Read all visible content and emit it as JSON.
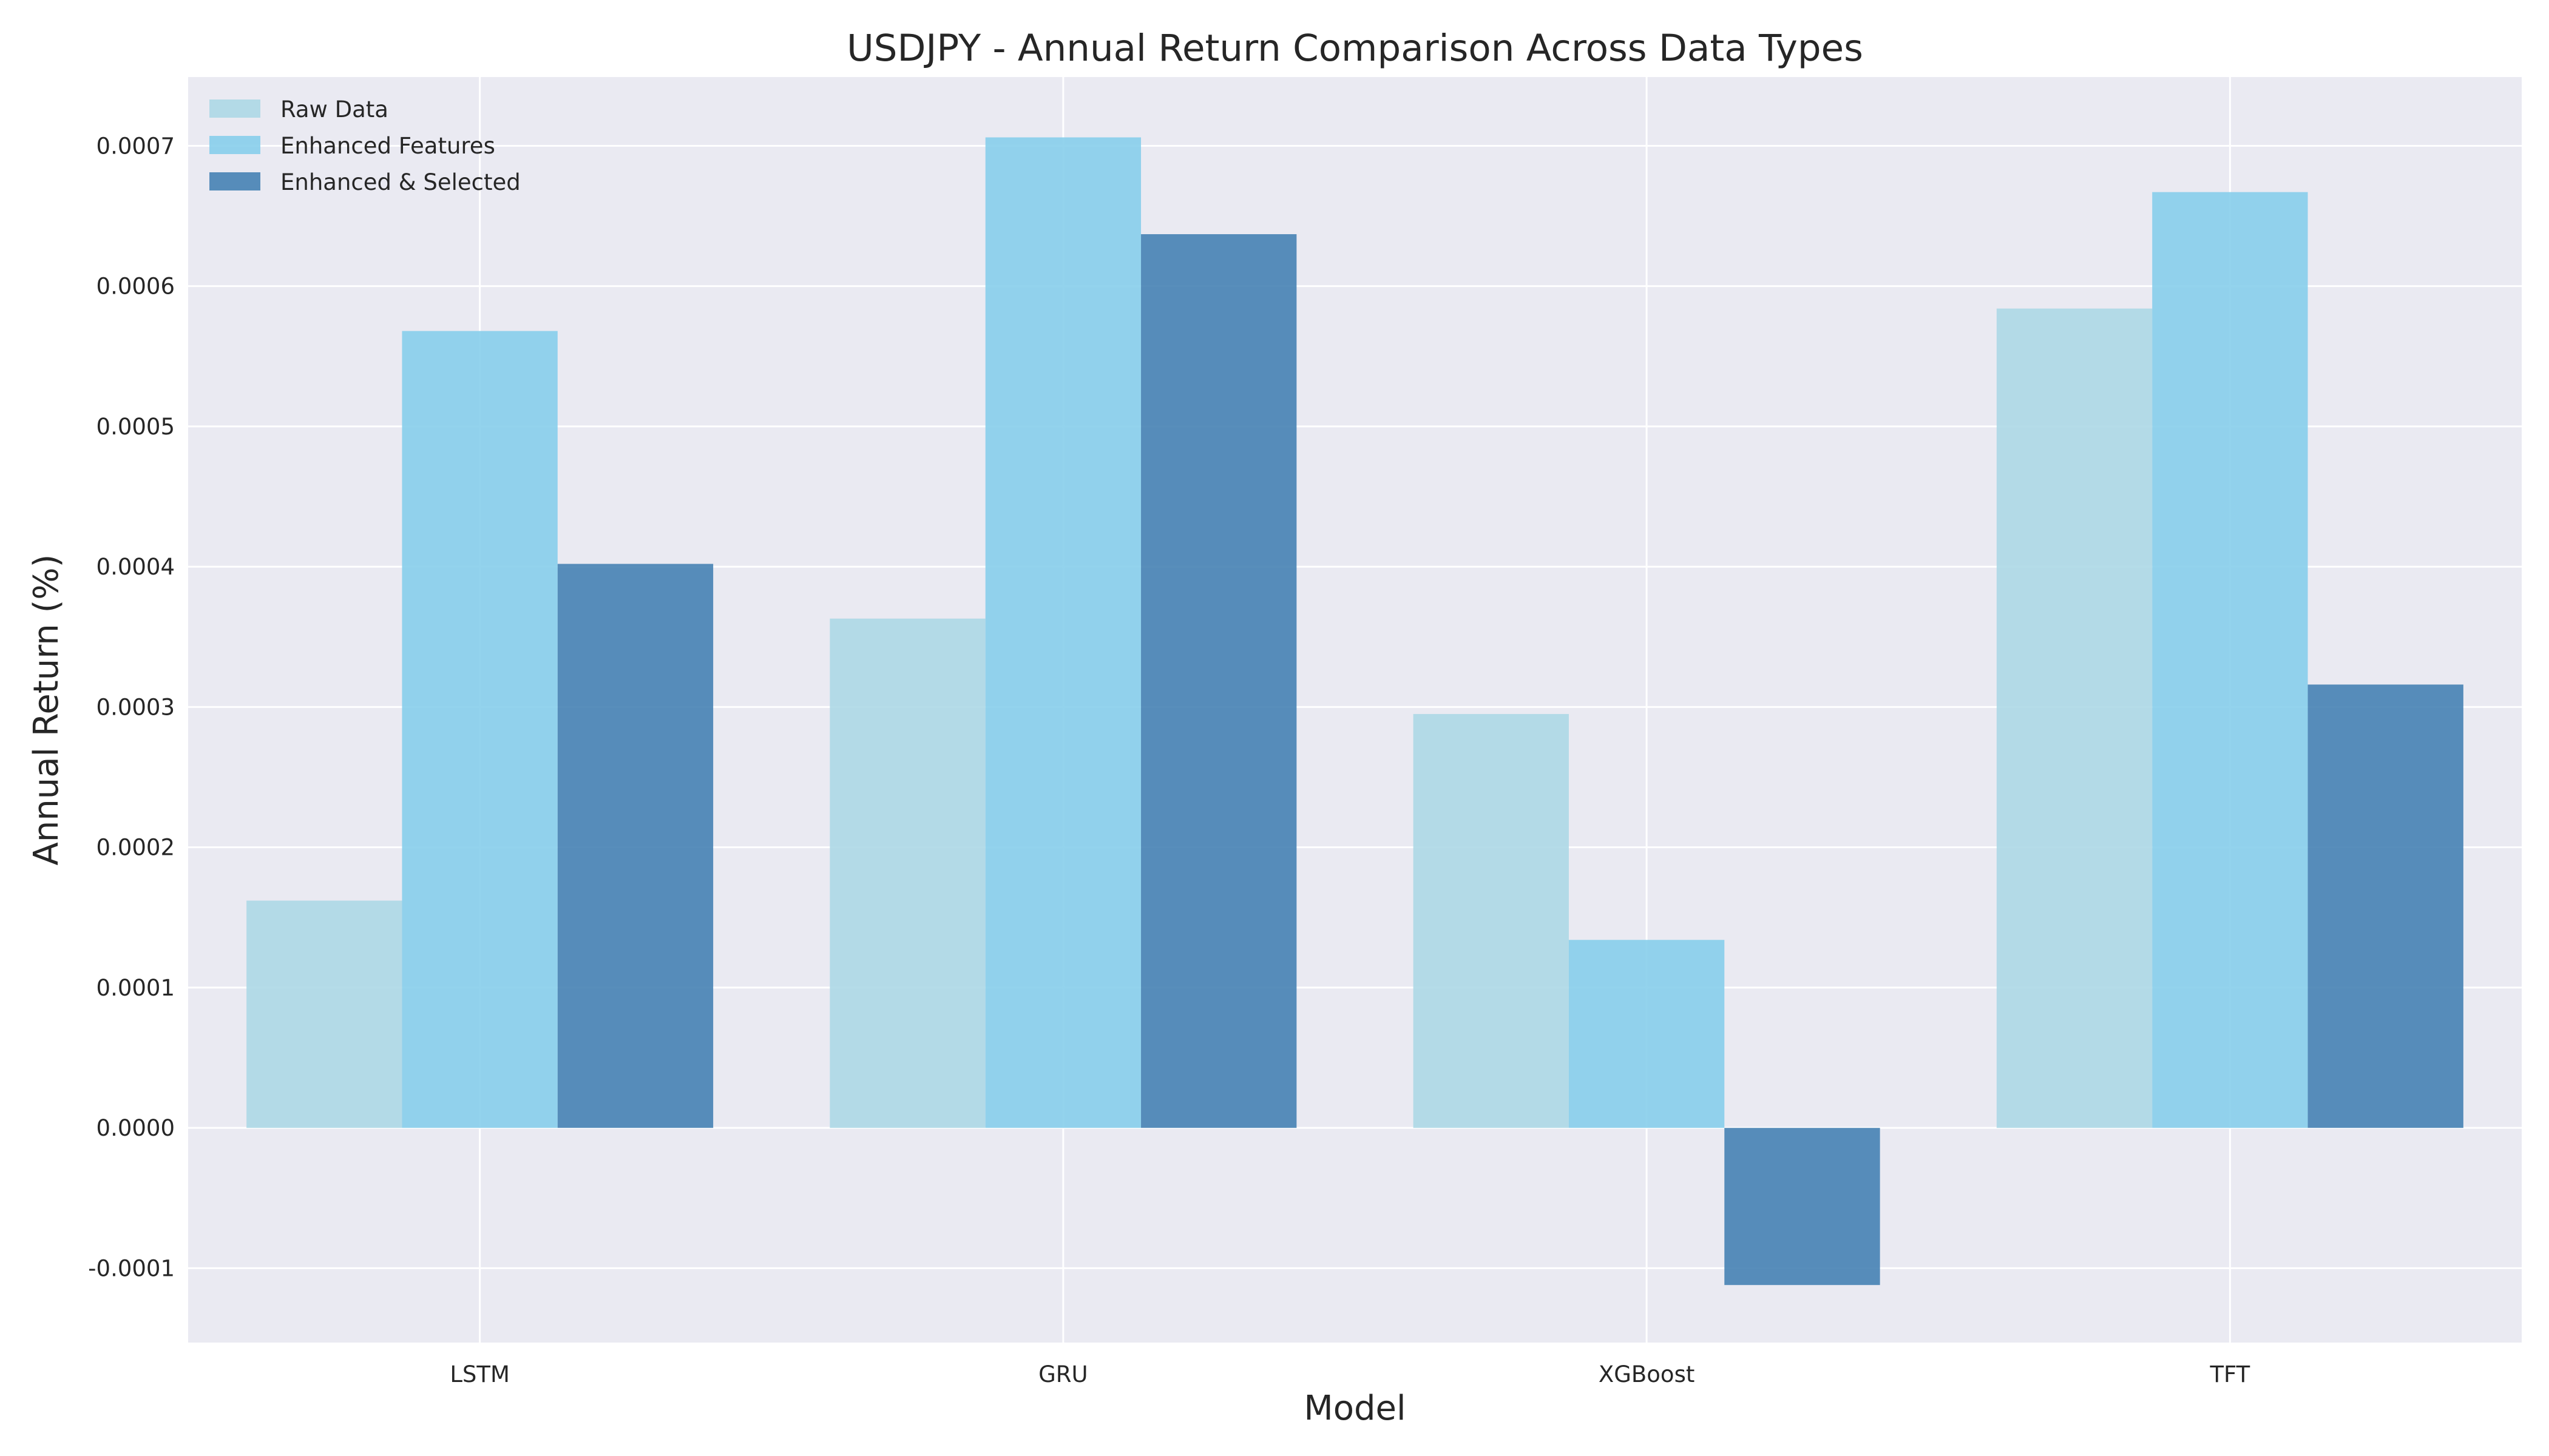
{
  "chart_data": {
    "type": "bar",
    "title": "USDJPY - Annual Return Comparison Across Data Types",
    "xlabel": "Model",
    "ylabel": "Annual Return (%)",
    "categories": [
      "LSTM",
      "GRU",
      "XGBoost",
      "TFT"
    ],
    "series": [
      {
        "name": "Raw Data",
        "color": "#add8e6",
        "values": [
          0.000162,
          0.000363,
          0.000295,
          0.000584
        ]
      },
      {
        "name": "Enhanced Features",
        "color": "#87ceeb",
        "values": [
          0.000568,
          0.000706,
          0.000134,
          0.000667
        ]
      },
      {
        "name": "Enhanced & Selected",
        "color": "#4682b4",
        "values": [
          0.000402,
          0.000637,
          -0.000112,
          0.000316
        ]
      }
    ],
    "ylim": [
      -0.000153,
      0.000749
    ],
    "yticks": [
      -0.0001,
      0.0,
      0.0001,
      0.0002,
      0.0003,
      0.0004,
      0.0005,
      0.0006,
      0.0007
    ],
    "ytick_labels": [
      "-0.0001",
      "0.0000",
      "0.0001",
      "0.0002",
      "0.0003",
      "0.0004",
      "0.0005",
      "0.0006",
      "0.0007"
    ],
    "grid": true,
    "legend_position": "top-left",
    "plot_background": "#eaeaf2",
    "grid_color": "#ffffff"
  }
}
